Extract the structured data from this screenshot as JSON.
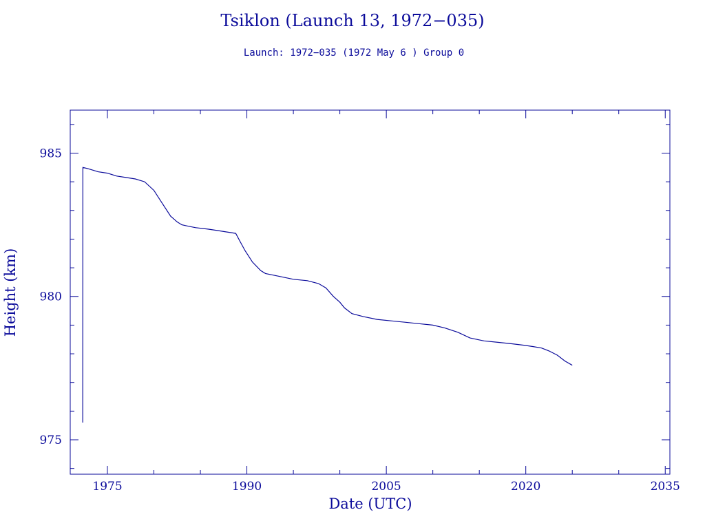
{
  "colors": {
    "ink": "#0a0a9a",
    "background": "#ffffff"
  },
  "chart_data": {
    "type": "line",
    "title": "Tsiklon (Launch 13, 1972−035)",
    "subtitle": "Launch: 1972−035  (1972 May  6 )  Group 0",
    "xlabel": "Date (UTC)",
    "ylabel": "Height (km)",
    "xlim": [
      1971,
      2035.5
    ],
    "ylim": [
      973.8,
      986.5
    ],
    "xticks": [
      1975,
      1990,
      2005,
      2020,
      2035
    ],
    "xtick_labels": [
      "1975",
      "1990",
      "2005",
      "2020",
      "2035"
    ],
    "yticks": [
      975,
      980,
      985
    ],
    "ytick_labels": [
      "975",
      "980",
      "985"
    ],
    "grid": false,
    "legend": "none",
    "series": [
      {
        "x": [
          1972.35,
          1972.36,
          1973.0,
          1974.0,
          1975.0,
          1976.0,
          1977.0,
          1978.0,
          1979.0,
          1980.0,
          1980.8,
          1981.8,
          1982.5,
          1983.0,
          1983.7,
          1984.5,
          1985.8,
          1986.8,
          1987.8,
          1988.8,
          1989.3,
          1989.8,
          1990.6,
          1991.5,
          1992.0,
          1993.5,
          1995.0,
          1996.5,
          1997.7,
          1998.5,
          1999.3,
          2000.0,
          2000.5,
          2001.3,
          2002.5,
          2004.0,
          2005.5,
          2007.0,
          2008.5,
          2010.0,
          2011.3,
          2012.7,
          2014.0,
          2015.5,
          2017.0,
          2018.5,
          2019.8,
          2020.8,
          2021.7,
          2022.5,
          2023.4,
          2024.2,
          2025.0
        ],
        "y": [
          975.6,
          984.5,
          984.45,
          984.35,
          984.3,
          984.2,
          984.15,
          984.1,
          984.0,
          983.7,
          983.3,
          982.8,
          982.6,
          982.5,
          982.45,
          982.4,
          982.35,
          982.3,
          982.25,
          982.2,
          981.9,
          981.6,
          981.2,
          980.9,
          980.8,
          980.7,
          980.6,
          980.55,
          980.45,
          980.3,
          980.0,
          979.8,
          979.6,
          979.4,
          979.3,
          979.2,
          979.15,
          979.1,
          979.05,
          979.0,
          978.9,
          978.75,
          978.55,
          978.45,
          978.4,
          978.35,
          978.3,
          978.25,
          978.2,
          978.1,
          977.95,
          977.75,
          977.6
        ]
      }
    ]
  }
}
